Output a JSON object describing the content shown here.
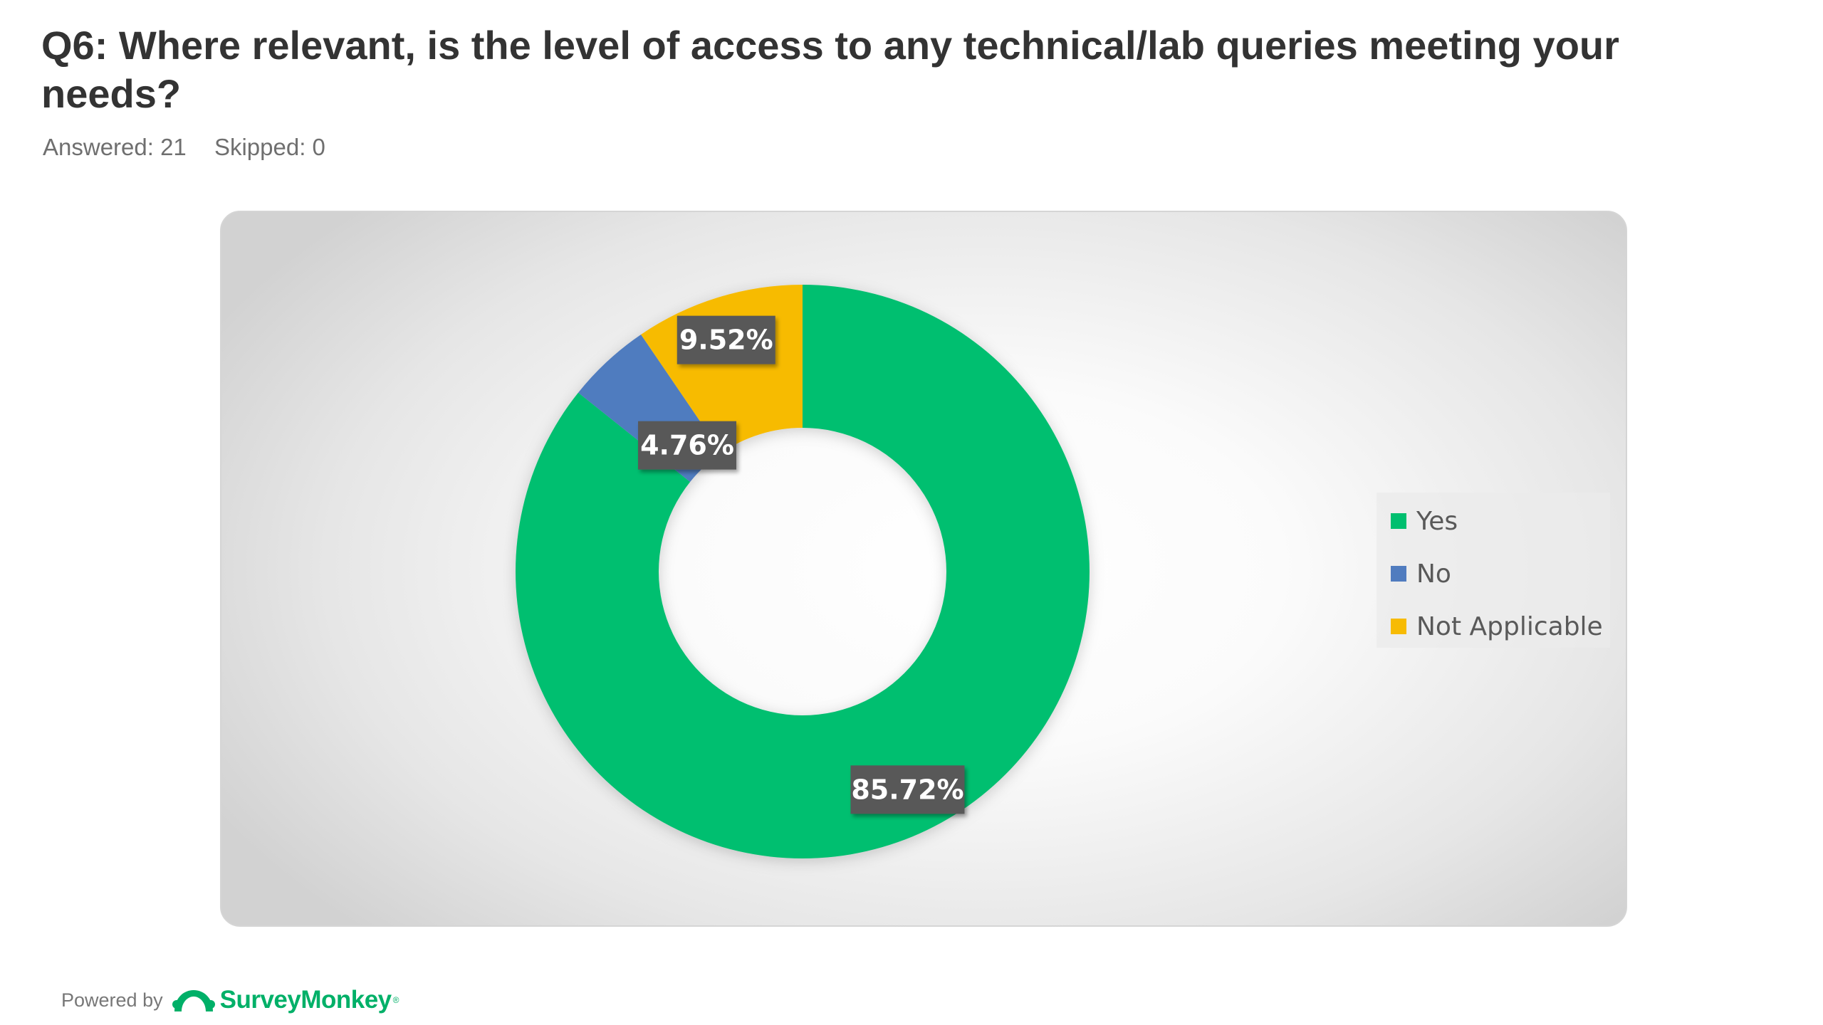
{
  "question": {
    "title": "Q6: Where relevant, is the level of access to any technical/lab queries meeting your needs?",
    "answered": "Answered: 21",
    "skipped": "Skipped: 0"
  },
  "chart_data": {
    "type": "pie",
    "style": "donut",
    "title": "",
    "legend_position": "right",
    "series": [
      {
        "name": "Yes",
        "value": 85.72,
        "label": "85.72%",
        "color": "#00bf6f"
      },
      {
        "name": "No",
        "value": 4.76,
        "label": "4.76%",
        "color": "#507cbf"
      },
      {
        "name": "Not Applicable",
        "value": 9.52,
        "label": "9.52%",
        "color": "#f7bb03"
      }
    ]
  },
  "footer": {
    "powered_by": "Powered by",
    "brand": "SurveyMonkey",
    "brand_icon": "surveymonkey-logo-icon",
    "brand_color": "#00b068"
  }
}
